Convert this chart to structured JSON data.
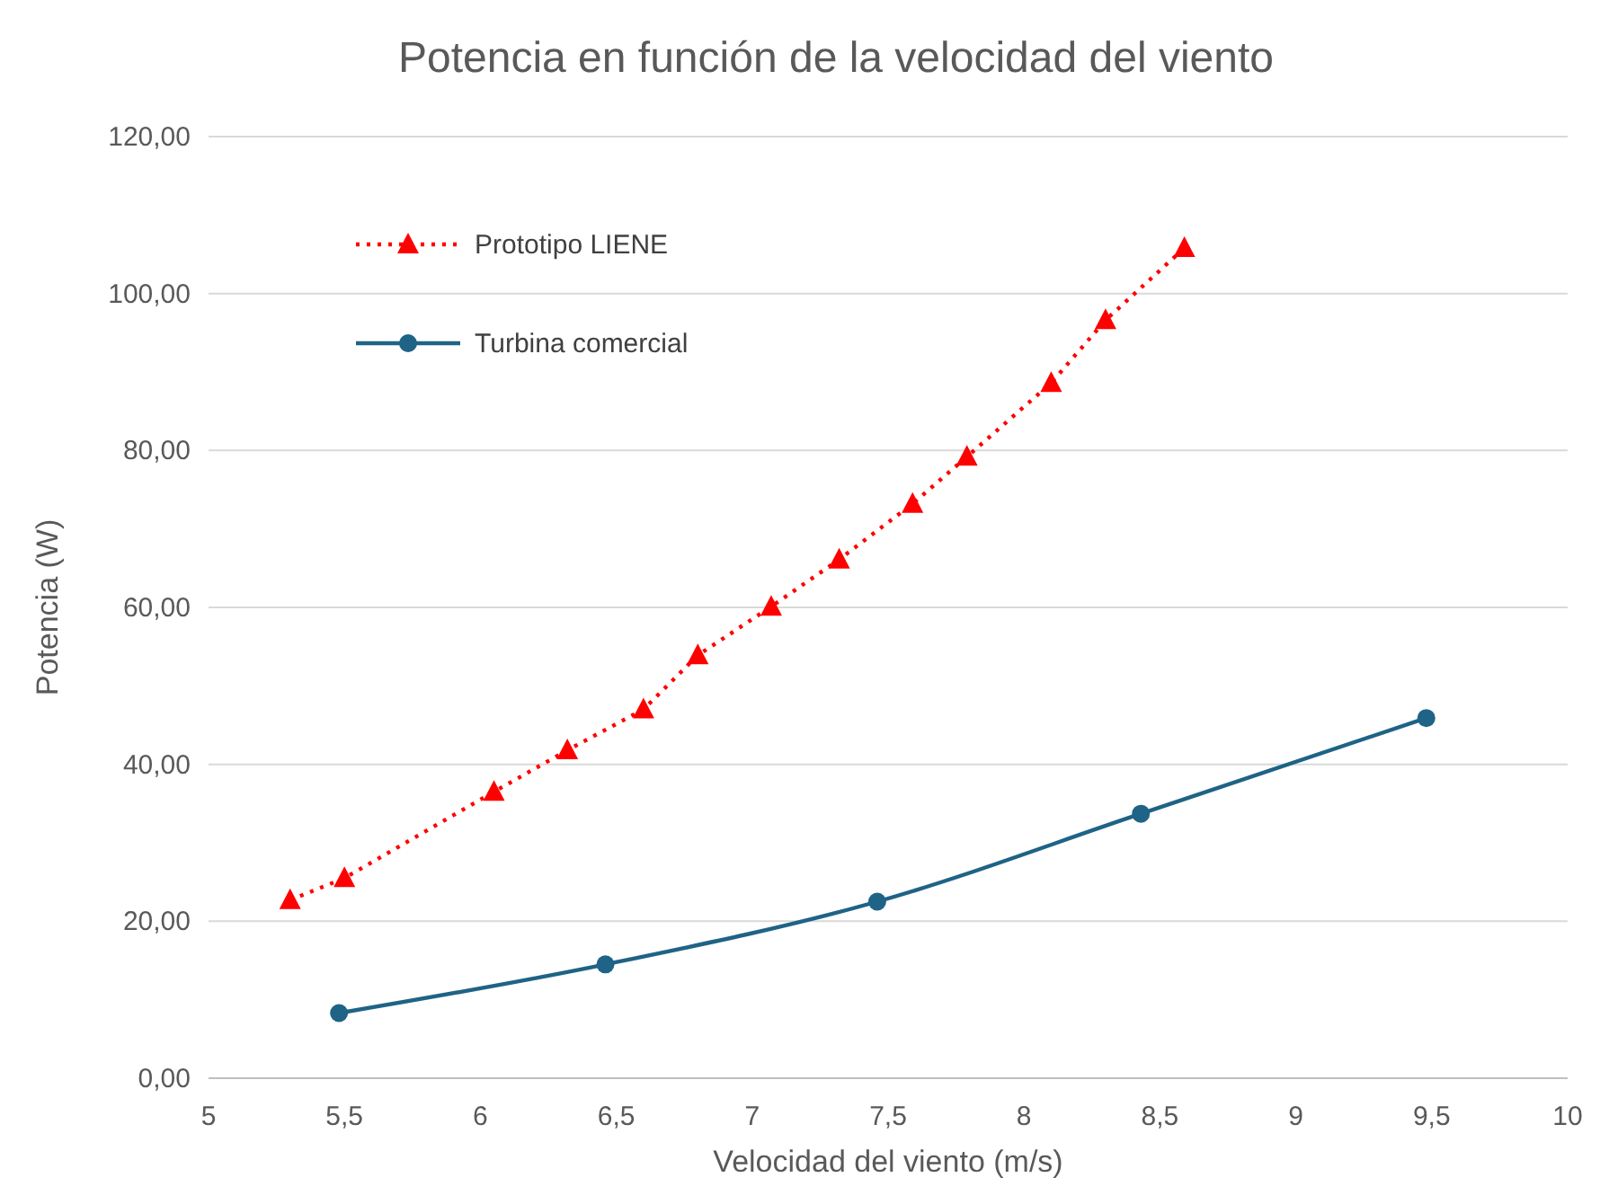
{
  "chart_data": {
    "type": "line",
    "title": "Potencia en función de la velocidad del viento",
    "xlabel": "Velocidad del viento (m/s)",
    "ylabel": "Potencia (W)",
    "xlim": [
      5,
      10
    ],
    "xticks": [
      5,
      {
        "value": 5.5,
        "label": "5,5"
      },
      6,
      {
        "value": 6.5,
        "label": "6,5"
      },
      7,
      {
        "value": 7.5,
        "label": "7,5"
      },
      8,
      {
        "value": 8.5,
        "label": "8,5"
      },
      9,
      {
        "value": 9.5,
        "label": "9,5"
      },
      10
    ],
    "ylim": [
      0,
      120
    ],
    "yticks": [
      {
        "value": 0,
        "label": "0,00"
      },
      {
        "value": 20,
        "label": "20,00"
      },
      {
        "value": 40,
        "label": "40,00"
      },
      {
        "value": 60,
        "label": "60,00"
      },
      {
        "value": 80,
        "label": "80,00"
      },
      {
        "value": 100,
        "label": "100,00"
      },
      {
        "value": 120,
        "label": "120,00"
      }
    ],
    "grid": "y",
    "legend": "top left",
    "series": [
      {
        "name": "Prototipo LIENE",
        "color": "#ff0000",
        "marker": "triangle",
        "line_style": "dotted",
        "x": [
          5.3,
          5.5,
          6.05,
          6.32,
          6.6,
          6.8,
          7.07,
          7.32,
          7.59,
          7.79,
          8.1,
          8.3,
          8.59
        ],
        "values": [
          22.7,
          25.5,
          36.5,
          41.8,
          47.0,
          53.9,
          60.1,
          66.1,
          73.2,
          79.2,
          88.6,
          96.6,
          105.8
        ]
      },
      {
        "name": "Turbina comercial",
        "color": "#1f6386",
        "marker": "circle",
        "line_style": "solid",
        "x": [
          5.48,
          6.46,
          7.46,
          8.43,
          9.48
        ],
        "values": [
          8.3,
          14.5,
          22.5,
          33.7,
          45.9
        ]
      }
    ]
  }
}
